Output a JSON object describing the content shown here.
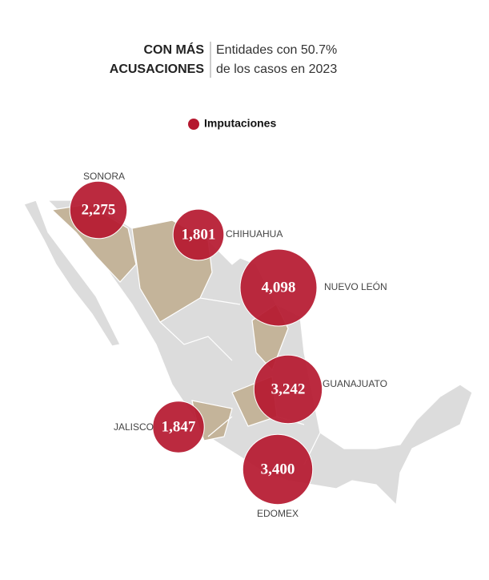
{
  "chart_data": {
    "type": "bubble_map",
    "title": [
      "CON MÁS",
      "ACUSACIONES"
    ],
    "subtitle": [
      "Entidades con 50.7%",
      "de los casos en 2023"
    ],
    "categories": [
      "SONORA",
      "CHIHUAHUA",
      "NUEVO LEÓN",
      "GUANAJUATO",
      "JALISCO",
      "EDOMEX"
    ],
    "series": [
      {
        "name": "Imputaciones",
        "color": "#b5182f",
        "values": [
          2275,
          1801,
          4098,
          3242,
          1847,
          3400
        ],
        "value_labels": [
          "2,275",
          "1,801",
          "4,098",
          "3,242",
          "1,847",
          "3,400"
        ]
      }
    ]
  }
}
